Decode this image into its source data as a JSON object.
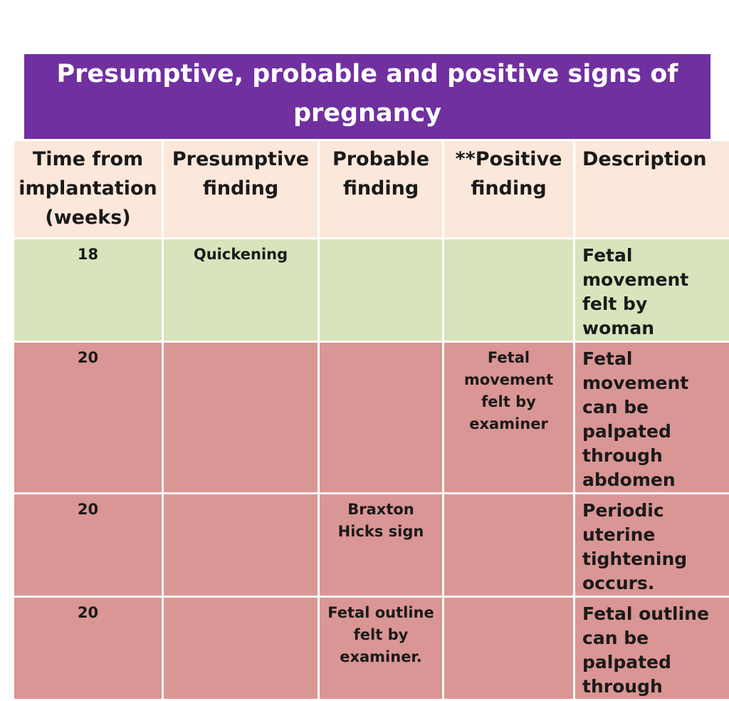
{
  "title": "Presumptive, probable and positive signs of pregnancy",
  "colors": {
    "title_bg": "#7030a0",
    "header_bg": "#fce8da",
    "header_text": "#c0001a",
    "green_row": "#d8e4bc",
    "pink_row": "#da9694"
  },
  "table": {
    "headers": {
      "time": "Time from implantation (weeks)",
      "presumptive": "Presumptive finding",
      "probable": "Probable finding",
      "positive": "**Positive finding",
      "description": "Description"
    },
    "rows": [
      {
        "time": "18",
        "presumptive": "Quickening",
        "probable": "",
        "positive": "",
        "description": "Fetal movement felt by woman"
      },
      {
        "time": "20",
        "presumptive": "",
        "probable": "",
        "positive": "Fetal movement felt by examiner",
        "description": "Fetal movement can be palpated through abdomen"
      },
      {
        "time": "20",
        "presumptive": "",
        "probable": "Braxton Hicks sign",
        "positive": "",
        "description": "Periodic uterine tightening occurs."
      },
      {
        "time": "20",
        "presumptive": "",
        "probable": "Fetal outline felt by examiner.",
        "positive": "",
        "description": "Fetal outline can be palpated through"
      }
    ]
  }
}
